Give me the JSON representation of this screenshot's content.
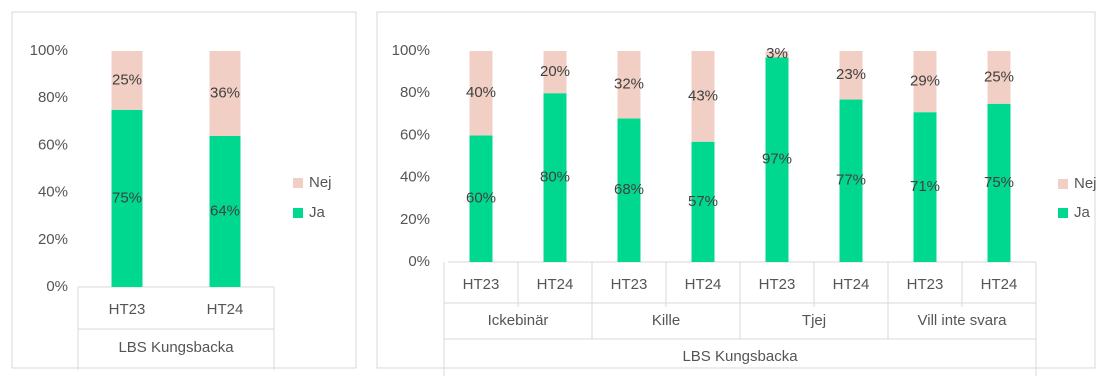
{
  "colors": {
    "ja": "#00d890",
    "nej": "#f2cfc4",
    "axis_text": "#555555",
    "border": "#d9d9d9",
    "label": "#404040"
  },
  "chart_data": [
    {
      "type": "bar",
      "stacked": true,
      "percent_stacked": true,
      "yticks": [
        "0%",
        "20%",
        "40%",
        "60%",
        "80%",
        "100%"
      ],
      "ylim": [
        0,
        100
      ],
      "grid": false,
      "legend_position": "right",
      "group_label": "LBS Kungsbacka",
      "subgroups": [],
      "categories": [
        "HT23",
        "HT24"
      ],
      "series": [
        {
          "name": "Ja",
          "color": "#00d890",
          "values": [
            75,
            64
          ],
          "labels": [
            "75%",
            "64%"
          ]
        },
        {
          "name": "Nej",
          "color": "#f2cfc4",
          "values": [
            25,
            36
          ],
          "labels": [
            "25%",
            "36%"
          ]
        }
      ]
    },
    {
      "type": "bar",
      "stacked": true,
      "percent_stacked": true,
      "yticks": [
        "0%",
        "20%",
        "40%",
        "60%",
        "80%",
        "100%"
      ],
      "ylim": [
        0,
        100
      ],
      "grid": false,
      "legend_position": "right",
      "group_label": "LBS Kungsbacka",
      "subgroups": [
        "Ickebinär",
        "Kille",
        "Tjej",
        "Vill inte svara"
      ],
      "categories": [
        "HT23",
        "HT24",
        "HT23",
        "HT24",
        "HT23",
        "HT24",
        "HT23",
        "HT24"
      ],
      "series": [
        {
          "name": "Ja",
          "color": "#00d890",
          "values": [
            60,
            80,
            68,
            57,
            97,
            77,
            71,
            75
          ],
          "labels": [
            "60%",
            "80%",
            "68%",
            "57%",
            "97%",
            "77%",
            "71%",
            "75%"
          ]
        },
        {
          "name": "Nej",
          "color": "#f2cfc4",
          "values": [
            40,
            20,
            32,
            43,
            3,
            23,
            29,
            25
          ],
          "labels": [
            "40%",
            "20%",
            "32%",
            "43%",
            "3%",
            "23%",
            "29%",
            "25%"
          ]
        }
      ]
    }
  ]
}
